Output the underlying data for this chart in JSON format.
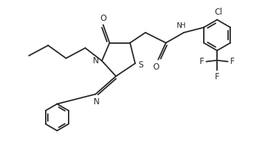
{
  "bg_color": "#ffffff",
  "line_color": "#2a2a2a",
  "line_width": 1.4,
  "font_size": 8.5,
  "xlim": [
    0,
    10
  ],
  "ylim": [
    0,
    6
  ]
}
